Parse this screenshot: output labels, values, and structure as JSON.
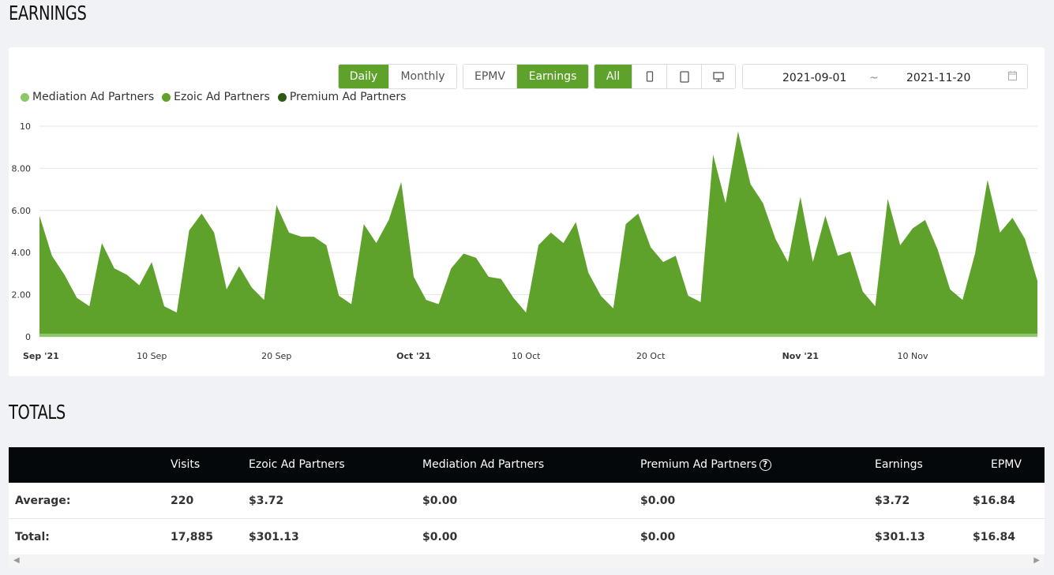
{
  "titles": {
    "earnings": "EARNINGS",
    "totals": "TOTALS"
  },
  "toolbar": {
    "period": [
      "Daily",
      "Monthly"
    ],
    "metric": [
      "EPMV",
      "Earnings"
    ],
    "device_all": "All",
    "device_icons": [
      "mobile-icon",
      "tablet-icon",
      "desktop-icon"
    ],
    "date_start": "2021-09-01",
    "date_sep": "~",
    "date_end": "2021-11-20",
    "calendar_icon": "calendar-icon"
  },
  "colors": {
    "accent": "#5fa22b",
    "mediation": "#8cc86a",
    "ezoic": "#5fa22b",
    "premium": "#2d5a12"
  },
  "chart_data": {
    "type": "area",
    "y_ticks": [
      "0",
      "2.00",
      "4.00",
      "6.00",
      "8.00",
      "10"
    ],
    "ylim": [
      0,
      10
    ],
    "x_ticks": [
      {
        "label": "Sep '21",
        "index": 0,
        "bold": true
      },
      {
        "label": "10 Sep",
        "index": 9,
        "bold": false
      },
      {
        "label": "20 Sep",
        "index": 19,
        "bold": false
      },
      {
        "label": "Oct '21",
        "index": 30,
        "bold": true
      },
      {
        "label": "10 Oct",
        "index": 39,
        "bold": false
      },
      {
        "label": "20 Oct",
        "index": 49,
        "bold": false
      },
      {
        "label": "Nov '21",
        "index": 61,
        "bold": true
      },
      {
        "label": "10 Nov",
        "index": 70,
        "bold": false
      }
    ],
    "series": [
      {
        "name": "Mediation Ad Partners",
        "color": "#8cc86a",
        "values": [
          0.15,
          0.15,
          0.15,
          0.15,
          0.15,
          0.15,
          0.15,
          0.15,
          0.15,
          0.15,
          0.15,
          0.15,
          0.15,
          0.15,
          0.15,
          0.15,
          0.15,
          0.15,
          0.15,
          0.15,
          0.15,
          0.15,
          0.15,
          0.15,
          0.15,
          0.15,
          0.15,
          0.15,
          0.15,
          0.15,
          0.15,
          0.15,
          0.15,
          0.15,
          0.15,
          0.15,
          0.15,
          0.15,
          0.15,
          0.15,
          0.15,
          0.15,
          0.15,
          0.15,
          0.15,
          0.15,
          0.15,
          0.15,
          0.15,
          0.15,
          0.15,
          0.15,
          0.15,
          0.15,
          0.15,
          0.15,
          0.15,
          0.15,
          0.15,
          0.15,
          0.15,
          0.15,
          0.15,
          0.15,
          0.15,
          0.15,
          0.15,
          0.15,
          0.15,
          0.15,
          0.15,
          0.15,
          0.15,
          0.15,
          0.15,
          0.15,
          0.15,
          0.15,
          0.15,
          0.15,
          0.15
        ]
      },
      {
        "name": "Ezoic Ad Partners",
        "color": "#5fa22b",
        "values": [
          5.6,
          3.7,
          2.8,
          1.7,
          1.3,
          4.3,
          3.1,
          2.8,
          2.3,
          3.4,
          1.3,
          1.0,
          4.9,
          5.7,
          4.8,
          2.1,
          3.2,
          2.2,
          1.6,
          6.1,
          4.8,
          4.6,
          4.6,
          4.2,
          1.8,
          1.4,
          5.2,
          4.3,
          5.4,
          7.2,
          2.7,
          1.6,
          1.4,
          3.1,
          3.8,
          3.6,
          2.7,
          2.6,
          1.7,
          1.0,
          4.2,
          4.8,
          4.3,
          5.3,
          2.9,
          1.8,
          1.2,
          5.2,
          5.7,
          4.1,
          3.4,
          3.7,
          1.8,
          1.5,
          8.5,
          6.2,
          9.6,
          7.1,
          6.2,
          4.5,
          3.4,
          6.5,
          3.4,
          5.6,
          3.7,
          3.9,
          2.0,
          1.3,
          6.4,
          4.2,
          5.0,
          5.4,
          4.0,
          2.1,
          1.6,
          3.8,
          7.3,
          4.8,
          5.5,
          4.5,
          2.5
        ]
      },
      {
        "name": "Premium Ad Partners",
        "color": "#2d5a12",
        "values": [
          0,
          0,
          0,
          0,
          0,
          0,
          0,
          0,
          0,
          0,
          0,
          0,
          0,
          0,
          0,
          0,
          0,
          0,
          0,
          0,
          0,
          0,
          0,
          0,
          0,
          0,
          0,
          0,
          0,
          0,
          0,
          0,
          0,
          0,
          0,
          0,
          0,
          0,
          0,
          0,
          0,
          0,
          0,
          0,
          0,
          0,
          0,
          0,
          0,
          0,
          0,
          0,
          0,
          0,
          0,
          0,
          0,
          0,
          0,
          0,
          0,
          0,
          0,
          0,
          0,
          0,
          0,
          0,
          0,
          0,
          0,
          0,
          0,
          0,
          0,
          0,
          0,
          0,
          0,
          0,
          0
        ]
      }
    ]
  },
  "totals": {
    "headers": [
      "Visits",
      "Ezoic Ad Partners",
      "Mediation Ad Partners",
      "Premium Ad Partners",
      "Earnings",
      "EPMV"
    ],
    "help_glyph": "?",
    "rows": [
      {
        "label": "Average:",
        "visits": "220",
        "ezoic": "$3.72",
        "mediation": "$0.00",
        "premium": "$0.00",
        "earnings": "$3.72",
        "epmv": "$16.84"
      },
      {
        "label": "Total:",
        "visits": "17,885",
        "ezoic": "$301.13",
        "mediation": "$0.00",
        "premium": "$0.00",
        "earnings": "$301.13",
        "epmv": "$16.84"
      }
    ]
  }
}
